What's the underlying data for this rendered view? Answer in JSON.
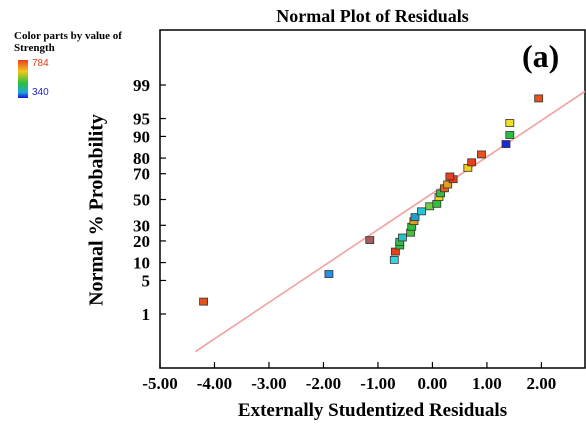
{
  "chart_data": {
    "type": "scatter",
    "title": "Normal Plot of Residuals",
    "panel_label": "(a)",
    "xlabel": "Externally Studentized Residuals",
    "ylabel": "Normal % Probability",
    "xlim": [
      -5.0,
      2.8
    ],
    "x_ticks": [
      "-5.00",
      "-4.00",
      "-3.00",
      "-2.00",
      "-1.00",
      "0.00",
      "1.00",
      "2.00"
    ],
    "y_ticks": [
      "1",
      "5",
      "10",
      "20",
      "30",
      "50",
      "70",
      "80",
      "90",
      "95",
      "99"
    ],
    "y_scale": "normal-probability",
    "legend": {
      "title": "Color parts by value of Strength",
      "max": "784",
      "min": "340",
      "placement": "top-left"
    },
    "reference_line": {
      "from": [
        -4.35,
        0.1
      ],
      "to": [
        2.8,
        98.6
      ],
      "color": "#f4a0a0"
    },
    "points": [
      {
        "x": -4.2,
        "y": 1.9,
        "color": "#e2541e"
      },
      {
        "x": -1.9,
        "y": 6.5,
        "color": "#2a8fe0"
      },
      {
        "x": -1.15,
        "y": 20.5,
        "color": "#a85a5a"
      },
      {
        "x": -0.7,
        "y": 11.0,
        "color": "#34d6e6"
      },
      {
        "x": -0.68,
        "y": 14.5,
        "color": "#e8401c"
      },
      {
        "x": -0.6,
        "y": 17.5,
        "color": "#2fbf3a"
      },
      {
        "x": -0.6,
        "y": 19.5,
        "color": "#38c04a"
      },
      {
        "x": -0.55,
        "y": 22.0,
        "color": "#2ac0c8"
      },
      {
        "x": -0.4,
        "y": 25.0,
        "color": "#46c23a"
      },
      {
        "x": -0.38,
        "y": 29.0,
        "color": "#2fbf3a"
      },
      {
        "x": -0.34,
        "y": 33.0,
        "color": "#e0a018"
      },
      {
        "x": -0.32,
        "y": 36.0,
        "color": "#1fa0d0"
      },
      {
        "x": -0.2,
        "y": 40.5,
        "color": "#22c8d8"
      },
      {
        "x": -0.05,
        "y": 44.5,
        "color": "#6ad040"
      },
      {
        "x": 0.08,
        "y": 46.5,
        "color": "#2fbf3a"
      },
      {
        "x": 0.12,
        "y": 52.0,
        "color": "#f0d020"
      },
      {
        "x": 0.15,
        "y": 55.0,
        "color": "#30c040"
      },
      {
        "x": 0.22,
        "y": 59.0,
        "color": "#e06018"
      },
      {
        "x": 0.28,
        "y": 62.0,
        "color": "#e8a020"
      },
      {
        "x": 0.38,
        "y": 66.0,
        "color": "#e8401c"
      },
      {
        "x": 0.32,
        "y": 68.0,
        "color": "#e84020"
      },
      {
        "x": 0.65,
        "y": 74.0,
        "color": "#f2d020"
      },
      {
        "x": 0.72,
        "y": 77.5,
        "color": "#e8401c"
      },
      {
        "x": 0.9,
        "y": 82.0,
        "color": "#e8501e"
      },
      {
        "x": 1.35,
        "y": 87.0,
        "color": "#1a2ad8"
      },
      {
        "x": 1.42,
        "y": 90.5,
        "color": "#2cc040"
      },
      {
        "x": 1.42,
        "y": 94.0,
        "color": "#f2e020"
      },
      {
        "x": 1.95,
        "y": 98.0,
        "color": "#e8501c"
      }
    ]
  }
}
